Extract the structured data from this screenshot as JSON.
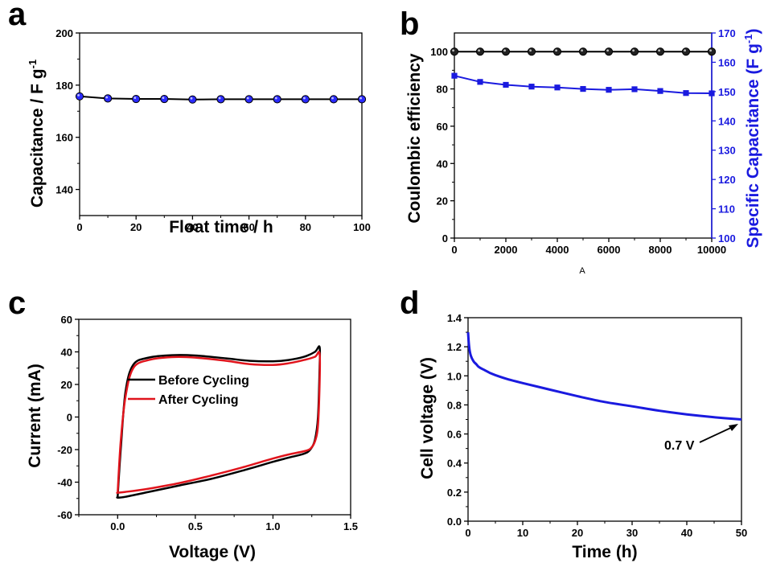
{
  "colors": {
    "black": "#000000",
    "blue": "#1a1adf",
    "red": "#e0141c",
    "marker_blue": "#2a2aff"
  },
  "chart_data": [
    {
      "panel": "a",
      "type": "line",
      "xlabel": "Float time / h",
      "ylabel_main": "Capacitance / F g",
      "ylabel_sup": "-1",
      "xlim": [
        0,
        100
      ],
      "ylim": [
        130,
        200
      ],
      "xticks": [
        0,
        20,
        40,
        60,
        80,
        100
      ],
      "yticks": [
        140,
        160,
        180,
        200
      ],
      "series": [
        {
          "marker": "circle",
          "x": [
            0,
            10,
            20,
            30,
            40,
            50,
            60,
            70,
            80,
            90,
            100
          ],
          "y": [
            175.7,
            174.9,
            174.7,
            174.7,
            174.5,
            174.6,
            174.6,
            174.6,
            174.6,
            174.6,
            174.6
          ]
        }
      ]
    },
    {
      "panel": "b",
      "type": "line",
      "xlabel": "A",
      "ylabel": "Coulombic efficiency",
      "ylabel_right_main": "Specific Capacitance (F g",
      "ylabel_right_sup": "-1",
      "ylabel_right_close": ")",
      "xlim": [
        0,
        10000
      ],
      "ylim": [
        0,
        110
      ],
      "ylim_right": [
        100,
        170
      ],
      "xticks": [
        0,
        2000,
        4000,
        6000,
        8000,
        10000
      ],
      "yticks": [
        0,
        20,
        40,
        60,
        80,
        100
      ],
      "yticks_right": [
        100,
        110,
        120,
        130,
        140,
        150,
        160,
        170
      ],
      "series": [
        {
          "axis": "left",
          "marker": "circle",
          "x": [
            0,
            1000,
            2000,
            3000,
            4000,
            5000,
            6000,
            7000,
            8000,
            9000,
            10000
          ],
          "y": [
            100,
            100,
            100,
            100,
            100,
            100,
            100,
            100,
            100,
            100,
            100
          ]
        },
        {
          "axis": "right",
          "marker": "square",
          "x": [
            0,
            1000,
            2000,
            3000,
            4000,
            5000,
            6000,
            7000,
            8000,
            9000,
            10000
          ],
          "y": [
            155.4,
            153.3,
            152.3,
            151.7,
            151.4,
            150.9,
            150.6,
            150.8,
            150.2,
            149.5,
            149.4
          ]
        }
      ]
    },
    {
      "panel": "c",
      "type": "line",
      "xlabel": "Voltage (V)",
      "ylabel": "Current (mA)",
      "xlim": [
        -0.25,
        1.5
      ],
      "ylim": [
        -60,
        60
      ],
      "xticks": [
        0.0,
        0.5,
        1.0,
        1.5
      ],
      "xtick_labels": [
        "0.0",
        "0.5",
        "1.0",
        "1.5"
      ],
      "yticks": [
        -60,
        -40,
        -20,
        0,
        20,
        40,
        60
      ],
      "legend": [
        "Before Cycling",
        "After Cycling"
      ],
      "series": [
        {
          "name": "Before Cycling",
          "x": [
            0.0,
            0.02,
            0.05,
            0.1,
            0.2,
            0.35,
            0.5,
            0.7,
            0.85,
            1.0,
            1.1,
            1.2,
            1.27,
            1.3,
            1.3,
            1.29,
            1.27,
            1.24,
            1.2,
            1.1,
            1.0,
            0.8,
            0.6,
            0.4,
            0.2,
            0.05,
            0.0,
            0.0
          ],
          "y": [
            -49,
            -20,
            15,
            32,
            36.5,
            38,
            37.8,
            36,
            34.5,
            34.2,
            35,
            37,
            40,
            43,
            30,
            0,
            -14,
            -20,
            -22.5,
            -25,
            -27.5,
            -33,
            -38,
            -42,
            -46,
            -49,
            -49.5,
            -49
          ]
        },
        {
          "name": "After Cycling",
          "x": [
            0.0,
            0.02,
            0.05,
            0.1,
            0.2,
            0.35,
            0.5,
            0.7,
            0.85,
            1.0,
            1.1,
            1.2,
            1.27,
            1.3,
            1.3,
            1.29,
            1.27,
            1.24,
            1.2,
            1.1,
            1.0,
            0.8,
            0.6,
            0.4,
            0.2,
            0.05,
            0.0,
            0.0
          ],
          "y": [
            -46.5,
            -15,
            12,
            30,
            35,
            36.8,
            36.5,
            34.5,
            32.5,
            32,
            33,
            35,
            37,
            39,
            20,
            -5,
            -15,
            -19.5,
            -21,
            -23,
            -25.5,
            -31,
            -36,
            -40.5,
            -44,
            -46,
            -46.5,
            -46.5
          ]
        }
      ]
    },
    {
      "panel": "d",
      "type": "line",
      "xlabel": "Time (h)",
      "ylabel": "Cell voltage (V)",
      "xlim": [
        0,
        50
      ],
      "ylim": [
        0.0,
        1.4
      ],
      "xticks": [
        0,
        10,
        20,
        30,
        40,
        50
      ],
      "yticks": [
        0.0,
        0.2,
        0.4,
        0.6,
        0.8,
        1.0,
        1.2,
        1.4
      ],
      "ytick_labels": [
        "0.0",
        "0.2",
        "0.4",
        "0.6",
        "0.8",
        "1.0",
        "1.2",
        "1.4"
      ],
      "annotation": "0.7 V",
      "annotation_target": [
        50,
        0.7
      ],
      "series": [
        {
          "x": [
            0,
            0.2,
            0.5,
            1,
            1.5,
            2,
            3,
            4,
            5,
            7,
            10,
            15,
            20,
            25,
            30,
            35,
            40,
            45,
            50
          ],
          "y": [
            1.3,
            1.2,
            1.14,
            1.1,
            1.08,
            1.06,
            1.04,
            1.02,
            1.005,
            0.98,
            0.95,
            0.905,
            0.86,
            0.82,
            0.79,
            0.76,
            0.735,
            0.715,
            0.7
          ]
        }
      ]
    }
  ],
  "panel_letters": [
    "a",
    "b",
    "c",
    "d"
  ]
}
